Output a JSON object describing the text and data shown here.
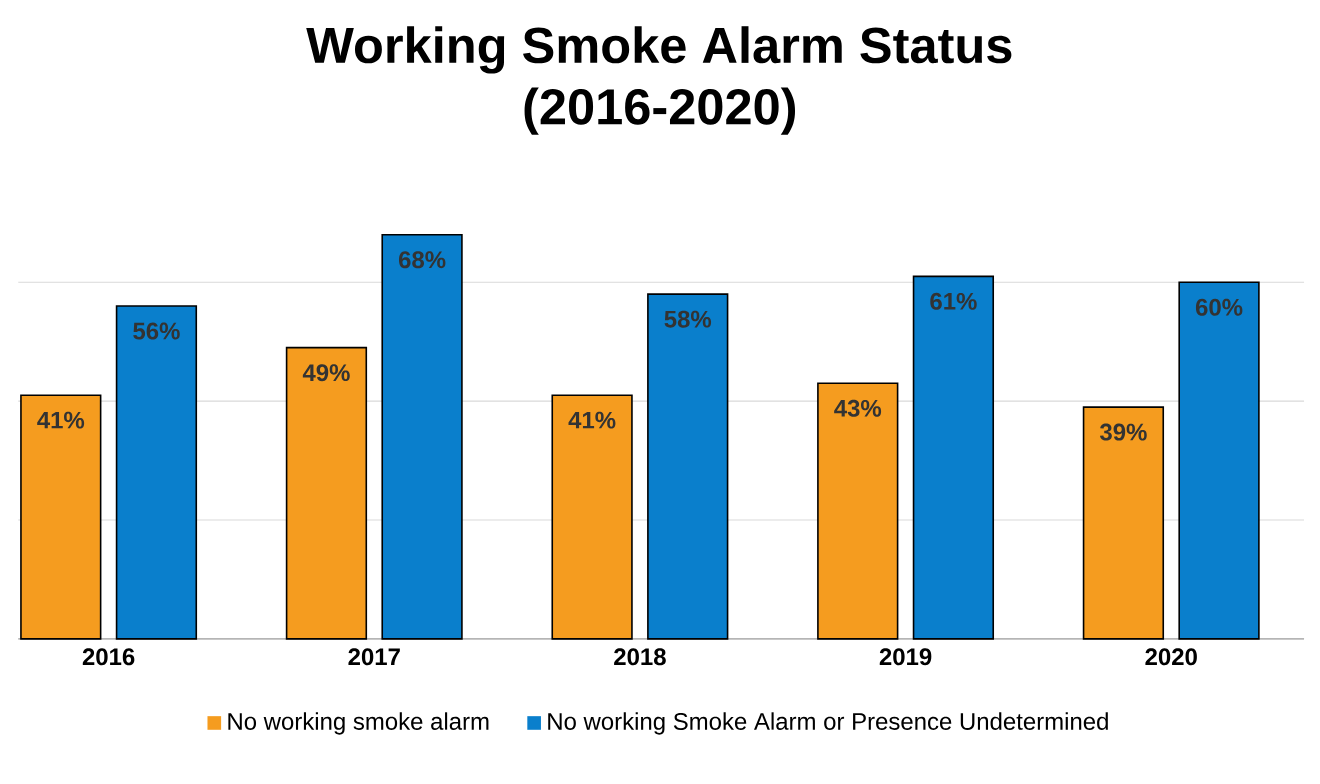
{
  "chart_data": {
    "type": "bar",
    "title": "Working Smoke Alarm Status",
    "subtitle": "(2016-2020)",
    "categories": [
      "2016",
      "2017",
      "2018",
      "2019",
      "2020"
    ],
    "series": [
      {
        "name": "No working smoke alarm",
        "color": "#f59c1f",
        "values": [
          41,
          49,
          41,
          43,
          39
        ],
        "value_labels": [
          "41%",
          "49%",
          "41%",
          "43%",
          "39%"
        ]
      },
      {
        "name": "No working Smoke Alarm or Presence Undetermined",
        "color": "#0a7fcc",
        "values": [
          56,
          68,
          58,
          61,
          60
        ],
        "value_labels": [
          "56%",
          "68%",
          "58%",
          "61%",
          "60%"
        ]
      }
    ],
    "tick_labels": "x",
    "grid": "y",
    "legend": "bottom"
  }
}
